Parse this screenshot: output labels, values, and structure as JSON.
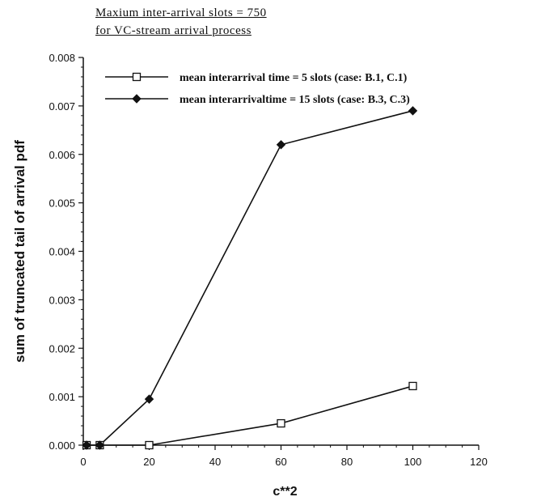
{
  "title_lines": [
    "Maxium inter-arrival slots = 750",
    "for VC-stream arrival process"
  ],
  "chart_data": {
    "type": "line",
    "xlabel": "c**2",
    "ylabel": "sum of truncated tail of arrival pdf",
    "xlim": [
      0,
      120
    ],
    "ylim": [
      0,
      0.008
    ],
    "xticks": [
      "0",
      "20",
      "40",
      "60",
      "80",
      "100",
      "120"
    ],
    "yticks": [
      "0.000",
      "0.001",
      "0.002",
      "0.003",
      "0.004",
      "0.005",
      "0.006",
      "0.007",
      "0.008"
    ],
    "grid": false,
    "legend_position": "top-left",
    "series": [
      {
        "name": "mean interarrival time = 5 slots (case: B.1, C.1)",
        "marker": "open-square",
        "color": "#111111",
        "x": [
          1,
          5,
          20,
          60,
          100
        ],
        "y": [
          0.0,
          0.0,
          0.0,
          0.00045,
          0.00122
        ]
      },
      {
        "name": "mean interarrivaltime = 15 slots (case: B.3, C.3)",
        "marker": "filled-diamond",
        "color": "#111111",
        "x": [
          1,
          5,
          20,
          60,
          100
        ],
        "y": [
          0.0,
          0.0,
          0.00095,
          0.0062,
          0.0069
        ]
      }
    ]
  }
}
